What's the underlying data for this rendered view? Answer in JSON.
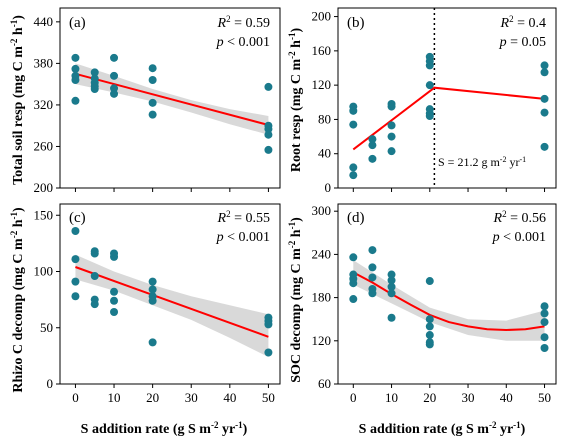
{
  "chart_data": [
    {
      "panel": "(a)",
      "type": "scatter",
      "ylabel_main": "Total soil resp",
      "unit": "(mg C m",
      "unit_sup1": "-2",
      "unit_mid": " h",
      "unit_sup2": "-1",
      "unit_end": ")",
      "ylim": [
        200,
        460
      ],
      "yticks": [
        200,
        260,
        320,
        380,
        440
      ],
      "xlim": [
        -4,
        53
      ],
      "xticks": [
        0,
        10,
        20,
        30,
        40,
        50
      ],
      "stat_line1_a": "R",
      "stat_line1_sup": "2",
      "stat_line1_b": " = 0.59",
      "stat_line2_italic": "p",
      "stat_line2_rest": " < 0.001",
      "points": [
        [
          0,
          388
        ],
        [
          0,
          372
        ],
        [
          0,
          362
        ],
        [
          0,
          356
        ],
        [
          0,
          326
        ],
        [
          5,
          367
        ],
        [
          5,
          358
        ],
        [
          5,
          352
        ],
        [
          5,
          347
        ],
        [
          5,
          343
        ],
        [
          10,
          388
        ],
        [
          10,
          362
        ],
        [
          10,
          344
        ],
        [
          10,
          336
        ],
        [
          20,
          373
        ],
        [
          20,
          356
        ],
        [
          20,
          323
        ],
        [
          20,
          306
        ],
        [
          50,
          346
        ],
        [
          50,
          290
        ],
        [
          50,
          285
        ],
        [
          50,
          277
        ],
        [
          50,
          255
        ]
      ],
      "fit": [
        [
          0,
          365
        ],
        [
          50,
          291
        ]
      ],
      "ci_upper": [
        [
          0,
          380
        ],
        [
          10,
          362
        ],
        [
          20,
          343
        ],
        [
          30,
          327
        ],
        [
          40,
          314
        ],
        [
          50,
          304
        ]
      ],
      "ci_lower": [
        [
          0,
          350
        ],
        [
          10,
          338
        ],
        [
          20,
          325
        ],
        [
          30,
          309
        ],
        [
          40,
          292
        ],
        [
          50,
          277
        ]
      ]
    },
    {
      "panel": "(b)",
      "type": "scatter",
      "ylabel_main": "Root resp",
      "unit": "(mg C m",
      "unit_sup1": "-2",
      "unit_mid": " h",
      "unit_sup2": "-1",
      "unit_end": ")",
      "ylim": [
        0,
        210
      ],
      "yticks": [
        0,
        40,
        80,
        120,
        160,
        200
      ],
      "xlim": [
        -4,
        53
      ],
      "xticks": [
        0,
        10,
        20,
        30,
        40,
        50
      ],
      "stat_line1_a": "R",
      "stat_line1_sup": "2",
      "stat_line1_b": " = 0.4",
      "stat_line2_italic": "p",
      "stat_line2_rest": " = 0.05",
      "points": [
        [
          0,
          95
        ],
        [
          0,
          90
        ],
        [
          0,
          74
        ],
        [
          0,
          24
        ],
        [
          0,
          15
        ],
        [
          5,
          57
        ],
        [
          5,
          50
        ],
        [
          5,
          34
        ],
        [
          10,
          98
        ],
        [
          10,
          95
        ],
        [
          10,
          73
        ],
        [
          10,
          60
        ],
        [
          10,
          43
        ],
        [
          20,
          153
        ],
        [
          20,
          148
        ],
        [
          20,
          143
        ],
        [
          20,
          120
        ],
        [
          20,
          92
        ],
        [
          20,
          87
        ],
        [
          20,
          84
        ],
        [
          50,
          143
        ],
        [
          50,
          135
        ],
        [
          50,
          104
        ],
        [
          50,
          88
        ],
        [
          50,
          48
        ]
      ],
      "fit": [
        [
          0,
          45
        ],
        [
          21.2,
          117
        ],
        [
          50,
          104
        ]
      ],
      "breakpoint": 21.2,
      "note_main": "S = 21.2 g m",
      "note_sup1": "-2",
      "note_mid": " yr",
      "note_sup2": "-1"
    },
    {
      "panel": "(c)",
      "type": "scatter",
      "ylabel_main": "Rhizo C decomp",
      "unit": "(mg C m",
      "unit_sup1": "-2",
      "unit_mid": " h",
      "unit_sup2": "-1",
      "unit_end": ")",
      "ylim": [
        0,
        160
      ],
      "yticks": [
        0,
        50,
        100,
        150
      ],
      "xlim": [
        -4,
        53
      ],
      "xticks": [
        0,
        10,
        20,
        30,
        40,
        50
      ],
      "stat_line1_a": "R",
      "stat_line1_sup": "2",
      "stat_line1_b": " = 0.55",
      "stat_line2_italic": "p",
      "stat_line2_rest": " < 0.001",
      "points": [
        [
          0,
          136
        ],
        [
          0,
          111
        ],
        [
          0,
          91
        ],
        [
          0,
          78
        ],
        [
          5,
          118
        ],
        [
          5,
          116
        ],
        [
          5,
          96
        ],
        [
          5,
          75
        ],
        [
          5,
          71
        ],
        [
          10,
          116
        ],
        [
          10,
          113
        ],
        [
          10,
          82
        ],
        [
          10,
          74
        ],
        [
          10,
          64
        ],
        [
          20,
          91
        ],
        [
          20,
          84
        ],
        [
          20,
          78
        ],
        [
          20,
          74
        ],
        [
          20,
          37
        ],
        [
          50,
          59
        ],
        [
          50,
          56
        ],
        [
          50,
          53
        ],
        [
          50,
          28
        ]
      ],
      "fit": [
        [
          0,
          104
        ],
        [
          50,
          42
        ]
      ],
      "ci_upper": [
        [
          0,
          115
        ],
        [
          10,
          100
        ],
        [
          20,
          88
        ],
        [
          30,
          78
        ],
        [
          40,
          70
        ],
        [
          50,
          62
        ]
      ],
      "ci_lower": [
        [
          0,
          93
        ],
        [
          10,
          83
        ],
        [
          20,
          70
        ],
        [
          30,
          57
        ],
        [
          40,
          41
        ],
        [
          50,
          24
        ]
      ]
    },
    {
      "panel": "(d)",
      "type": "scatter",
      "ylabel_main": "SOC decomp",
      "unit": "(mg C m",
      "unit_sup1": "-2",
      "unit_mid": " h",
      "unit_sup2": "-1",
      "unit_end": ")",
      "ylim": [
        60,
        310
      ],
      "yticks": [
        60,
        120,
        180,
        240,
        300
      ],
      "xlim": [
        -4,
        53
      ],
      "xticks": [
        0,
        10,
        20,
        30,
        40,
        50
      ],
      "stat_line1_a": "R",
      "stat_line1_sup": "2",
      "stat_line1_b": " = 0.56",
      "stat_line2_italic": "p",
      "stat_line2_rest": " < 0.001",
      "points": [
        [
          0,
          236
        ],
        [
          0,
          212
        ],
        [
          0,
          206
        ],
        [
          0,
          200
        ],
        [
          0,
          178
        ],
        [
          5,
          246
        ],
        [
          5,
          222
        ],
        [
          5,
          208
        ],
        [
          5,
          192
        ],
        [
          5,
          186
        ],
        [
          10,
          212
        ],
        [
          10,
          204
        ],
        [
          10,
          195
        ],
        [
          10,
          186
        ],
        [
          10,
          152
        ],
        [
          20,
          203
        ],
        [
          20,
          150
        ],
        [
          20,
          140
        ],
        [
          20,
          128
        ],
        [
          20,
          118
        ],
        [
          20,
          115
        ],
        [
          50,
          168
        ],
        [
          50,
          158
        ],
        [
          50,
          146
        ],
        [
          50,
          125
        ],
        [
          50,
          110
        ]
      ],
      "fit": [
        [
          0,
          215
        ],
        [
          5,
          201
        ],
        [
          10,
          185
        ],
        [
          15,
          170
        ],
        [
          20,
          156
        ],
        [
          25,
          146
        ],
        [
          30,
          140
        ],
        [
          35,
          136
        ],
        [
          40,
          135
        ],
        [
          45,
          136
        ],
        [
          50,
          140
        ]
      ],
      "ci_upper": [
        [
          0,
          232
        ],
        [
          10,
          198
        ],
        [
          20,
          166
        ],
        [
          30,
          150
        ],
        [
          40,
          148
        ],
        [
          50,
          162
        ]
      ],
      "ci_lower": [
        [
          0,
          198
        ],
        [
          10,
          172
        ],
        [
          20,
          146
        ],
        [
          30,
          128
        ],
        [
          40,
          120
        ],
        [
          50,
          120
        ]
      ]
    }
  ],
  "xlabel_main": "S addition rate (g S m",
  "xlabel_sup1": "-2",
  "xlabel_mid": " yr",
  "xlabel_sup2": "-1",
  "xlabel_end": ")",
  "colors": {
    "points": "#1a7a8c",
    "fit": "#ff0000",
    "band": "#d9d9d9"
  }
}
